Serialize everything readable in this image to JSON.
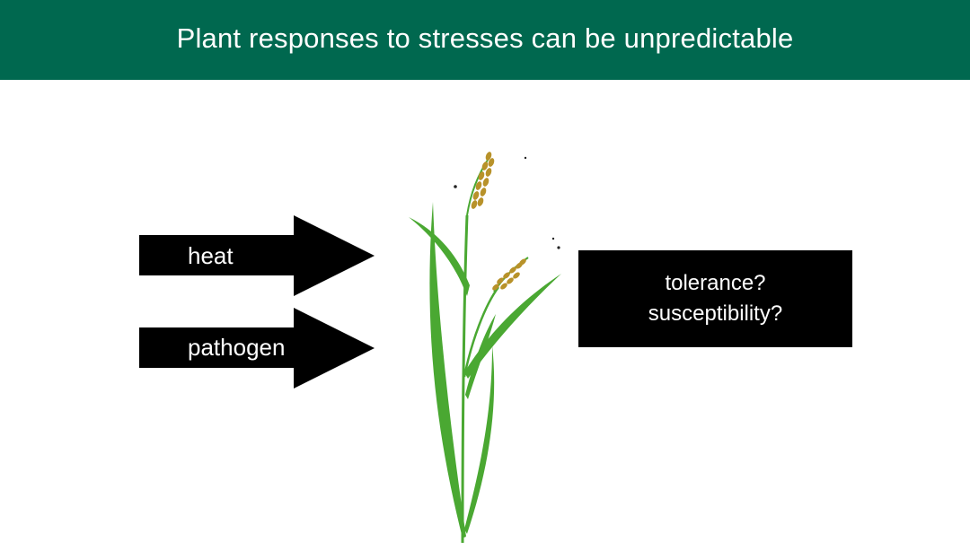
{
  "header": {
    "title": "Plant responses to stresses can be unpredictable",
    "background": "#00684f"
  },
  "stresses": [
    {
      "label": "heat"
    },
    {
      "label": "pathogen"
    }
  ],
  "outcome": {
    "lines": [
      "tolerance?",
      "susceptibility?"
    ]
  },
  "colors": {
    "arrow": "#000000",
    "leaf": "#4aa832",
    "grain": "#b8922a"
  },
  "icons": {
    "plant": "rice-plant-icon"
  }
}
